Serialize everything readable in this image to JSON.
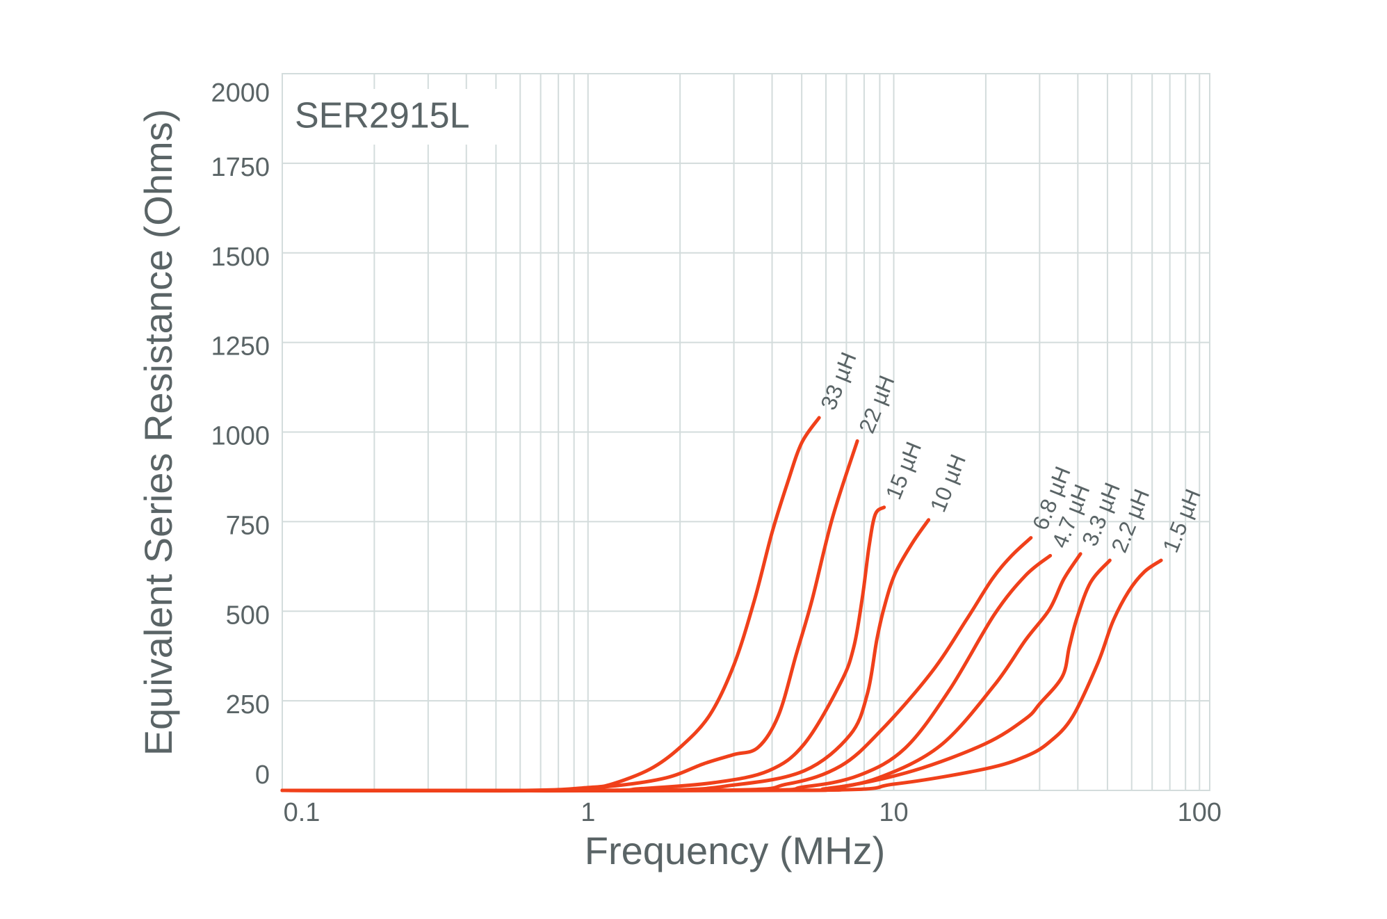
{
  "chart_data": {
    "type": "line",
    "title": "SER2915L",
    "x_label": "Frequency (MHz)",
    "y_label": "Equivalent Series Resistance (Ohms)",
    "xlim": [
      0.1,
      108
    ],
    "xticks": [
      0.1,
      1,
      10,
      100
    ],
    "x_log": true,
    "ylim": [
      0,
      2000
    ],
    "yticks": [
      0,
      250,
      500,
      750,
      1000,
      1250,
      1500,
      1750,
      2000
    ],
    "grid": true,
    "minor_grid": true,
    "series": [
      {
        "name": "33 µH",
        "color": "#f0401a",
        "x": [
          0.1,
          0.6,
          1.0,
          1.2,
          1.6,
          2.0,
          2.5,
          3.0,
          3.5,
          4.0,
          4.5,
          5.0,
          5.7
        ],
        "values": [
          0,
          0,
          8,
          18,
          60,
          120,
          210,
          350,
          530,
          720,
          860,
          970,
          1040
        ]
      },
      {
        "name": "22 µH",
        "color": "#f0401a",
        "x": [
          0.1,
          0.7,
          1.2,
          1.8,
          2.4,
          3.0,
          3.6,
          4.2,
          4.8,
          5.4,
          6.3,
          7.6
        ],
        "values": [
          0,
          0,
          12,
          35,
          75,
          100,
          120,
          210,
          380,
          530,
          760,
          975
        ]
      },
      {
        "name": "15 µH",
        "color": "#f0401a",
        "x": [
          0.1,
          1.0,
          1.5,
          2.6,
          3.9,
          5.1,
          6.7,
          7.4,
          7.9,
          8.3,
          8.7,
          9.3
        ],
        "values": [
          0,
          0,
          5,
          22,
          55,
          130,
          300,
          400,
          540,
          680,
          770,
          790
        ]
      },
      {
        "name": "10 µH",
        "color": "#f0401a",
        "x": [
          0.1,
          1.5,
          3.0,
          5.1,
          7.2,
          8.2,
          8.8,
          9.3,
          10.1,
          11.5,
          13.0
        ],
        "values": [
          0,
          0,
          15,
          55,
          155,
          270,
          420,
          510,
          605,
          690,
          755
        ]
      },
      {
        "name": "6.8 µH",
        "color": "#f0401a",
        "x": [
          0.1,
          2.5,
          4.5,
          6.7,
          9.1,
          13.3,
          17.4,
          21.0,
          24.3,
          28.1
        ],
        "values": [
          0,
          0,
          18,
          68,
          168,
          330,
          480,
          590,
          655,
          705
        ]
      },
      {
        "name": "4.7 µH",
        "color": "#f0401a",
        "x": [
          0.1,
          3.0,
          5.1,
          7.7,
          10.9,
          15.2,
          21.3,
          27.0,
          32.5
        ],
        "values": [
          0,
          0,
          10,
          42,
          118,
          280,
          490,
          600,
          655
        ]
      },
      {
        "name": "3.3 µH",
        "color": "#f0401a",
        "x": [
          0.1,
          4.0,
          6.0,
          8.9,
          14.2,
          21.3,
          27.0,
          32.3,
          36.0,
          40.8
        ],
        "values": [
          0,
          0,
          5,
          35,
          125,
          293,
          420,
          505,
          590,
          660
        ]
      },
      {
        "name": "2.2 µH",
        "color": "#f0401a",
        "x": [
          0.1,
          4.5,
          6.7,
          11.6,
          19.9,
          27.0,
          30.1,
          35.6,
          37.5,
          39.7,
          44.0,
          50.9
        ],
        "values": [
          0,
          0,
          10,
          55,
          130,
          200,
          243,
          318,
          400,
          480,
          580,
          642
        ]
      },
      {
        "name": "1.5 µH",
        "color": "#f0401a",
        "x": [
          0.1,
          5.0,
          10.1,
          19.9,
          27.0,
          32.3,
          38.4,
          46.5,
          52.0,
          58.6,
          66.0,
          74.9
        ],
        "values": [
          0,
          0,
          18,
          60,
          95,
          135,
          205,
          355,
          470,
          555,
          610,
          642
        ]
      }
    ]
  }
}
